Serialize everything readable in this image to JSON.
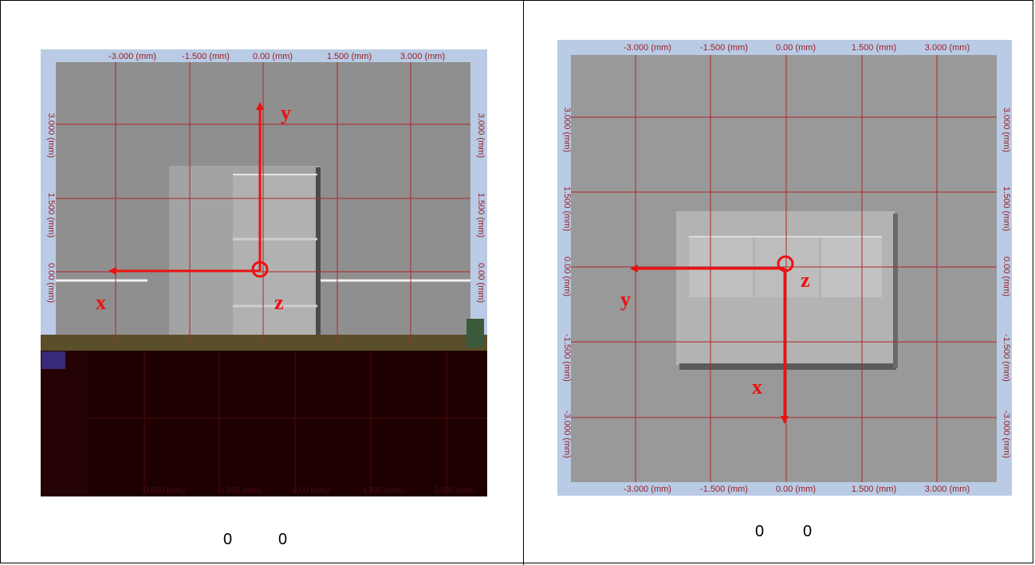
{
  "left_panel": {
    "top_ticks": [
      "-3.000 (mm)",
      "-1.500 (mm)",
      "0.00 (mm)",
      "1.500 (mm)",
      "3.000 (mm)"
    ],
    "side_ticks": [
      "3.000 (mm)",
      "1.500 (mm)",
      "0.00 (mm)"
    ],
    "bottom_ticks": [
      "-3.000 (mm)",
      "-1.500 (mm)",
      "0.00 (mm)",
      "1.500 (mm)",
      "3.000 (mm)"
    ],
    "axes": {
      "horizontal": "x",
      "vertical": "y",
      "origin": "z"
    },
    "caption": [
      "0",
      "0"
    ]
  },
  "right_panel": {
    "top_ticks": [
      "-3.000 (mm)",
      "-1.500 (mm)",
      "0.00 (mm)",
      "1.500 (mm)",
      "3.000 (mm)"
    ],
    "side_ticks": [
      "3.000 (mm)",
      "1.500 (mm)",
      "0.00 (mm)",
      "-1.500 (mm)",
      "-3.000 (mm)"
    ],
    "bottom_ticks": [
      "-3.000 (mm)",
      "-1.500 (mm)",
      "0.00 (mm)",
      "1.500 (mm)",
      "3.000 (mm)"
    ],
    "axes": {
      "horizontal": "y",
      "vertical": "x",
      "origin": "z"
    },
    "caption": [
      "0",
      "0"
    ]
  },
  "colors": {
    "grid": "#b0262a",
    "arrow": "#ee1010",
    "frame": "#b9cbe5",
    "surface": "#8f8f8f"
  }
}
